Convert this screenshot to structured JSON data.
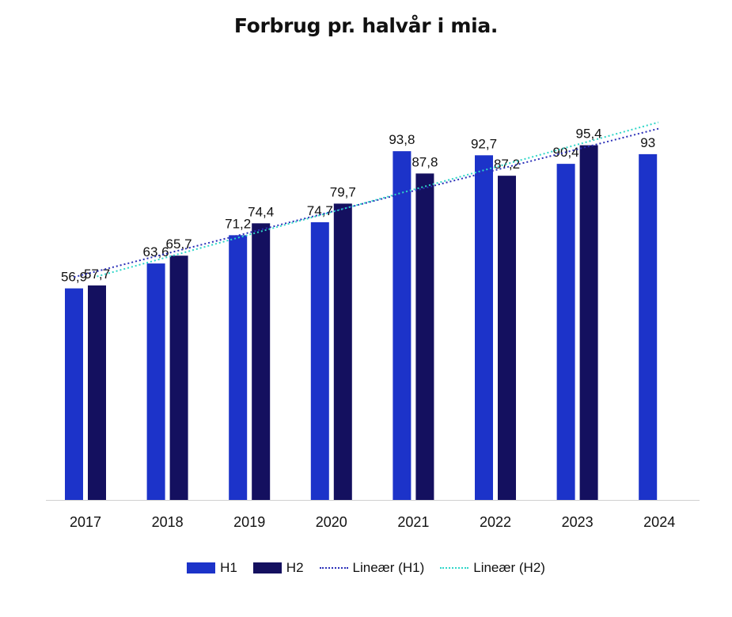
{
  "chart_data": {
    "type": "bar",
    "title": "Forbrug pr. halvår i mia.",
    "categories": [
      "2017",
      "2018",
      "2019",
      "2020",
      "2021",
      "2022",
      "2023",
      "2024"
    ],
    "series": [
      {
        "name": "H1",
        "color": "#1c33c9",
        "values": [
          56.9,
          63.6,
          71.2,
          74.7,
          93.8,
          92.7,
          90.4,
          93
        ],
        "labels": [
          "56,9",
          "63,6",
          "71,2",
          "74,7",
          "93,8",
          "92,7",
          "90,4",
          "93"
        ]
      },
      {
        "name": "H2",
        "color": "#14105f",
        "values": [
          57.7,
          65.7,
          74.4,
          79.7,
          87.8,
          87.2,
          95.4,
          null
        ],
        "labels": [
          "57,7",
          "65,7",
          "74,4",
          "79,7",
          "87,8",
          "87,2",
          "95,4",
          ""
        ]
      }
    ],
    "trendlines": [
      {
        "name": "Lineær (H1)",
        "of": "H1",
        "color": "#2a2fb8",
        "style": "dotted"
      },
      {
        "name": "Lineær (H2)",
        "of": "H2",
        "color": "#2fd6c8",
        "style": "dotted"
      }
    ],
    "ylim": [
      0,
      105
    ],
    "grid": false,
    "legend": "bottom"
  }
}
